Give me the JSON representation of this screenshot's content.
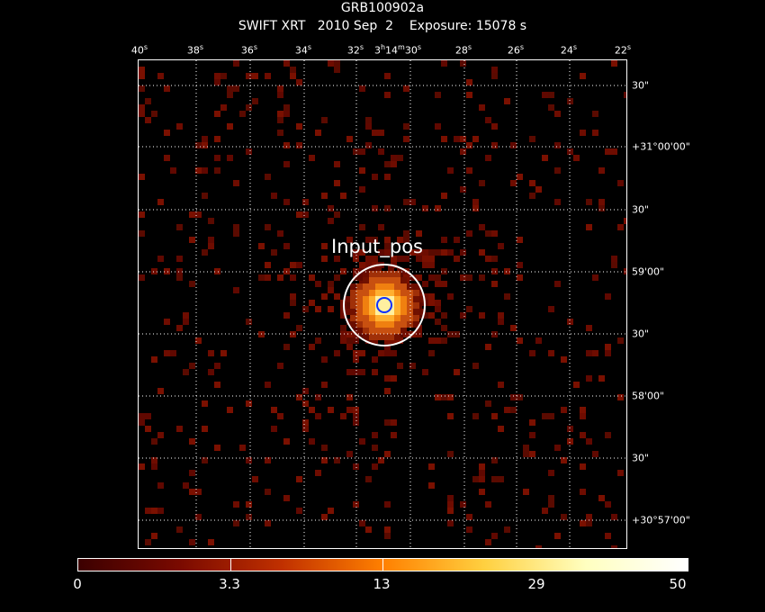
{
  "header": {
    "object": "GRB100902a",
    "instrument_line": "SWIFT XRT   2010 Sep  2    Exposure: 15078 s"
  },
  "ra_ticks": [
    "40",
    "38",
    "36",
    "34",
    "32",
    "3",
    "30",
    "28",
    "26",
    "24",
    "22"
  ],
  "ra_center_label": {
    "h": "3",
    "hsup": "h",
    "m": "14",
    "msup": "m",
    "s": "30",
    "ssup": "s"
  },
  "dec_ticks": [
    "30\"",
    "+31°00'00\"",
    "30\"",
    "59'00\"",
    "30\"",
    "58'00\"",
    "30\"",
    "+30°57'00\""
  ],
  "source": {
    "label": "Input_pos"
  },
  "colorbar": {
    "labels": [
      "0",
      "3.3",
      "13",
      "29",
      "50"
    ],
    "colors": [
      "#3c0000",
      "#7a0a00",
      "#c03000",
      "#ff8000",
      "#ffd040",
      "#ffffc0",
      "#ffffff"
    ]
  },
  "colors": {
    "background": "#000000",
    "grid": "#ffffff",
    "circle_outer": "#ffffff",
    "circle_inner": "#1030ff"
  }
}
